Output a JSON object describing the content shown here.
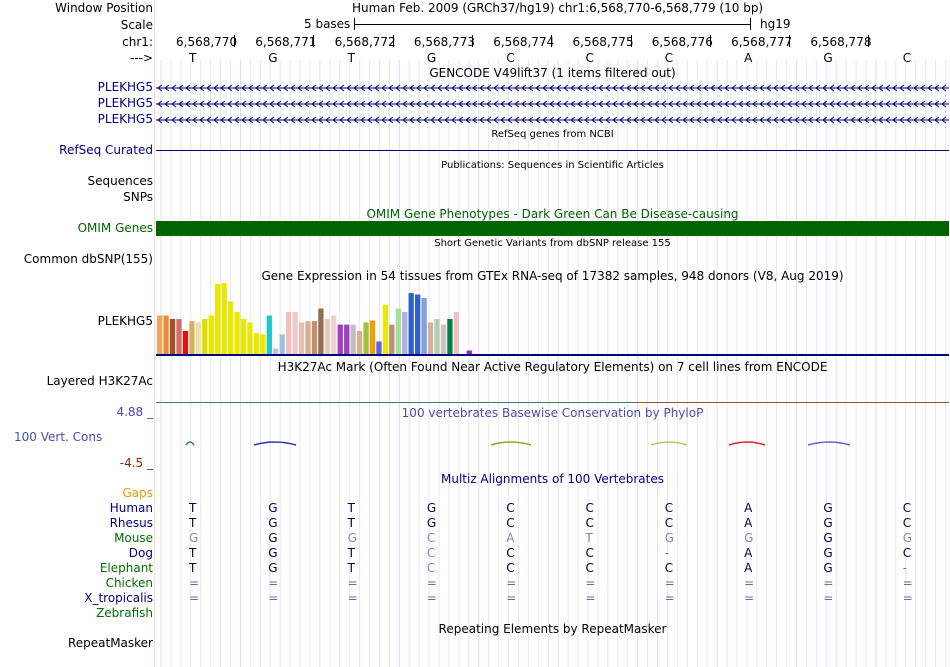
{
  "header": {
    "window_position_label": "Window Position",
    "scale_label": "Scale",
    "chr_label": "chr1:",
    "direction_label": "--->",
    "title": "Human Feb. 2009 (GRCh37/hg19)   chr1:6,568,770-6,568,779 (10 bp)",
    "scale_text": "5 bases",
    "assembly": "hg19"
  },
  "ruler": {
    "positions": [
      "6,568,770",
      "6,568,771",
      "6,568,772",
      "6,568,773",
      "6,568,774",
      "6,568,775",
      "6,568,776",
      "6,568,777",
      "6,568,778"
    ],
    "bases": [
      "T",
      "G",
      "T",
      "G",
      "C",
      "C",
      "C",
      "A",
      "G",
      "C"
    ]
  },
  "tracks": {
    "gencode": {
      "title": "GENCODE V49lift37 (1 items filtered out)",
      "items": [
        "PLEKHG5",
        "PLEKHG5",
        "PLEKHG5"
      ]
    },
    "refseq": {
      "title": "RefSeq genes from NCBI",
      "label": "RefSeq Curated"
    },
    "publications": {
      "title": "Publications: Sequences in Scientific Articles",
      "label1": "Sequences",
      "label2": "SNPs"
    },
    "omim": {
      "title": "OMIM Gene Phenotypes - Dark Green Can Be Disease-causing",
      "label": "OMIM Genes"
    },
    "dbsnp": {
      "title": "Short Genetic Variants from dbSNP release 155",
      "label": "Common dbSNP(155)"
    },
    "gtex": {
      "title": "Gene Expression in 54 tissues from GTEx RNA-seq of 17382 samples, 948 donors (V8, Aug 2019)",
      "label": "PLEKHG5"
    },
    "h3k27ac": {
      "title": "H3K27Ac Mark (Often Found Near Active Regulatory Elements) on 7 cell lines from ENCODE",
      "label": "Layered H3K27Ac"
    },
    "conservation": {
      "title": "100 vertebrates Basewise Conservation by PhyloP",
      "label": "100 Vert. Cons",
      "max_label": "4.88 _",
      "min_label": "-4.5 _"
    },
    "multiz": {
      "title": "Multiz Alignments of 100 Vertebrates",
      "gaps_label": "Gaps",
      "species": [
        {
          "name": "Human",
          "bases": [
            "T",
            "G",
            "T",
            "G",
            "C",
            "C",
            "C",
            "A",
            "G",
            "C"
          ]
        },
        {
          "name": "Rhesus",
          "bases": [
            "T",
            "G",
            "T",
            "G",
            "C",
            "C",
            "C",
            "A",
            "G",
            "C"
          ]
        },
        {
          "name": "Mouse",
          "bases": [
            "G",
            "G",
            "G",
            "C",
            "A",
            "T",
            "G",
            "G",
            "G",
            "G"
          ]
        },
        {
          "name": "Dog",
          "bases": [
            "T",
            "G",
            "T",
            "C",
            "C",
            "C",
            "-",
            "A",
            "G",
            "C"
          ]
        },
        {
          "name": "Elephant",
          "bases": [
            "T",
            "G",
            "T",
            "C",
            "C",
            "C",
            "C",
            "A",
            "G",
            "-"
          ]
        },
        {
          "name": "Chicken",
          "bases": [
            "=",
            "=",
            "=",
            "=",
            "=",
            "=",
            "=",
            "=",
            "=",
            "="
          ]
        },
        {
          "name": "X_tropicalis",
          "bases": [
            "=",
            "=",
            "=",
            "=",
            "=",
            "=",
            "=",
            "=",
            "=",
            "="
          ]
        },
        {
          "name": "Zebrafish",
          "bases": [
            "",
            "",
            "",
            "",
            "",
            "",
            "",
            "",
            "",
            ""
          ]
        }
      ]
    },
    "repeatmasker": {
      "title": "Repeating Elements by RepeatMasker",
      "label": "RepeatMasker"
    }
  },
  "colors": {
    "navy": "#000080",
    "omim_green": "#006400",
    "phylop_blue": "#4b4bb0"
  },
  "gtex_bars": [
    {
      "v": 0.55,
      "c": "#f7a35c"
    },
    {
      "v": 0.55,
      "c": "#f08a3a"
    },
    {
      "v": 0.5,
      "c": "#a0522d"
    },
    {
      "v": 0.5,
      "c": "#d96b6b"
    },
    {
      "v": 0.33,
      "c": "#e01010"
    },
    {
      "v": 0.47,
      "c": "#d8b060"
    },
    {
      "v": 0.45,
      "c": "#f0e0a0"
    },
    {
      "v": 0.5,
      "c": "#e0e000"
    },
    {
      "v": 0.55,
      "c": "#e8e800"
    },
    {
      "v": 1.0,
      "c": "#e8e800"
    },
    {
      "v": 1.02,
      "c": "#e8e800"
    },
    {
      "v": 0.75,
      "c": "#e8e800"
    },
    {
      "v": 0.6,
      "c": "#e8e800"
    },
    {
      "v": 0.5,
      "c": "#e8e800"
    },
    {
      "v": 0.45,
      "c": "#e8e800"
    },
    {
      "v": 0.3,
      "c": "#e8e800"
    },
    {
      "v": 0.28,
      "c": "#e8e800"
    },
    {
      "v": 0.55,
      "c": "#20c8c8"
    },
    {
      "v": 0.08,
      "c": "#c0c0e8"
    },
    {
      "v": 0.28,
      "c": "#a0c0e0"
    },
    {
      "v": 0.6,
      "c": "#f0c0c0"
    },
    {
      "v": 0.6,
      "c": "#f0c8c8"
    },
    {
      "v": 0.45,
      "c": "#e8c0b0"
    },
    {
      "v": 0.47,
      "c": "#d8b090"
    },
    {
      "v": 0.47,
      "c": "#c09070"
    },
    {
      "v": 0.65,
      "c": "#907050"
    },
    {
      "v": 0.5,
      "c": "#e8c8c0"
    },
    {
      "v": 0.55,
      "c": "#f0d0d0"
    },
    {
      "v": 0.42,
      "c": "#a040c0"
    },
    {
      "v": 0.42,
      "c": "#a040c0"
    },
    {
      "v": 0.42,
      "c": "#c0c0c0"
    },
    {
      "v": 0.33,
      "c": "#d8b090"
    },
    {
      "v": 0.45,
      "c": "#a0c040"
    },
    {
      "v": 0.48,
      "c": "#f0a000"
    },
    {
      "v": 0.18,
      "c": "#6060e0"
    },
    {
      "v": 0.7,
      "c": "#e8e800"
    },
    {
      "v": 0.42,
      "c": "#c09070"
    },
    {
      "v": 0.65,
      "c": "#a0e0a0"
    },
    {
      "v": 0.6,
      "c": "#b0b0e0"
    },
    {
      "v": 0.87,
      "c": "#3060d0"
    },
    {
      "v": 0.85,
      "c": "#3060d0"
    },
    {
      "v": 0.8,
      "c": "#80a0e0"
    },
    {
      "v": 0.45,
      "c": "#d8b0a0"
    },
    {
      "v": 0.5,
      "c": "#b0d0b0"
    },
    {
      "v": 0.42,
      "c": "#d0c0c0"
    },
    {
      "v": 0.5,
      "c": "#008040"
    },
    {
      "v": 0.6,
      "c": "#f0c0c0"
    },
    {
      "v": 0.0,
      "c": "#fff"
    },
    {
      "v": 0.05,
      "c": "#a020c0"
    }
  ]
}
